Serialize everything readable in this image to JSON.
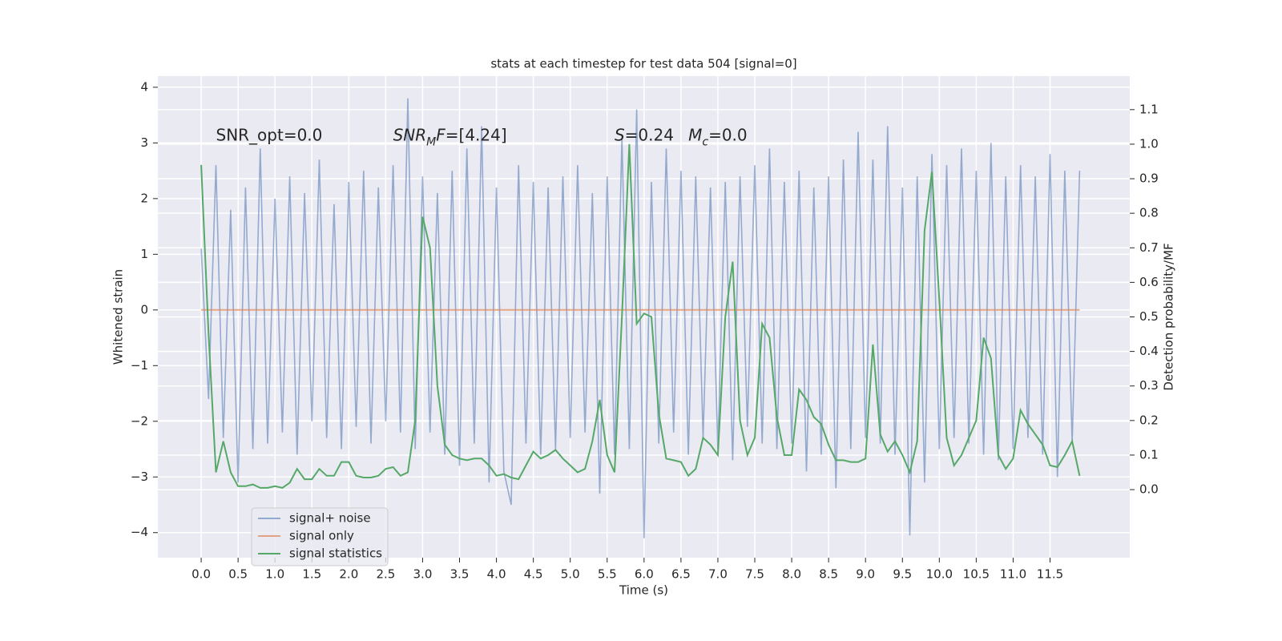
{
  "chart_data": {
    "type": "line",
    "title": "stats at each timestep for test data 504 [signal=0]",
    "xlabel": "Time (s)",
    "ylabel": "Whitened strain",
    "y2label": "Detection probability/MF",
    "annotations": [
      [
        {
          "t": "SNR_opt=0.0"
        }
      ],
      [
        {
          "t": "SNR",
          "italic": true
        },
        {
          "t": "M",
          "italic": true,
          "sub": true
        },
        {
          "t": "F",
          "italic": true
        },
        {
          "t": "=[4.24]"
        }
      ],
      [
        {
          "t": "S",
          "italic": true
        },
        {
          "t": "=0.24"
        }
      ],
      [
        {
          "t": "M",
          "italic": true
        },
        {
          "t": "c",
          "italic": true,
          "sub": true
        },
        {
          "t": "=0.0"
        }
      ]
    ],
    "x": [
      0.0,
      0.1,
      0.2,
      0.3,
      0.4,
      0.5,
      0.6,
      0.7,
      0.8,
      0.9,
      1.0,
      1.1,
      1.2,
      1.3,
      1.4,
      1.5,
      1.6,
      1.7,
      1.8,
      1.9,
      2.0,
      2.1,
      2.2,
      2.3,
      2.4,
      2.5,
      2.6,
      2.7,
      2.8,
      2.9,
      3.0,
      3.1,
      3.2,
      3.3,
      3.4,
      3.5,
      3.6,
      3.7,
      3.8,
      3.9,
      4.0,
      4.1,
      4.2,
      4.3,
      4.4,
      4.5,
      4.6,
      4.7,
      4.8,
      4.9,
      5.0,
      5.1,
      5.2,
      5.3,
      5.4,
      5.5,
      5.6,
      5.7,
      5.8,
      5.9,
      6.0,
      6.1,
      6.2,
      6.3,
      6.4,
      6.5,
      6.6,
      6.7,
      6.8,
      6.9,
      7.0,
      7.1,
      7.2,
      7.3,
      7.4,
      7.5,
      7.6,
      7.7,
      7.8,
      7.9,
      8.0,
      8.1,
      8.2,
      8.3,
      8.4,
      8.5,
      8.6,
      8.7,
      8.8,
      8.9,
      9.0,
      9.1,
      9.2,
      9.3,
      9.4,
      9.5,
      9.6,
      9.7,
      9.8,
      9.9,
      10.0,
      10.1,
      10.2,
      10.3,
      10.4,
      10.5,
      10.6,
      10.7,
      10.8,
      10.9,
      11.0,
      11.1,
      11.2,
      11.3,
      11.4,
      11.5,
      11.6,
      11.7,
      11.8,
      11.9
    ],
    "series": [
      {
        "name": "signal+ noise",
        "color": "#4c72b0",
        "values": [
          1.1,
          -1.6,
          2.6,
          -2.3,
          1.8,
          -3.1,
          2.2,
          -2.5,
          2.9,
          -2.4,
          2.0,
          -2.2,
          2.4,
          -2.6,
          2.1,
          -2.0,
          2.7,
          -2.3,
          1.9,
          -2.5,
          2.3,
          -2.1,
          2.5,
          -2.4,
          2.2,
          -2.0,
          2.6,
          -2.2,
          3.8,
          -2.5,
          2.4,
          -2.2,
          2.1,
          -2.6,
          2.5,
          -2.8,
          2.9,
          -2.4,
          3.3,
          -3.1,
          2.2,
          -2.9,
          -3.5,
          2.6,
          -2.4,
          2.3,
          -2.6,
          2.2,
          -2.5,
          2.4,
          -2.3,
          2.6,
          -2.2,
          2.1,
          -3.3,
          2.4,
          -2.6,
          3.1,
          -2.5,
          3.6,
          -4.1,
          2.3,
          -2.4,
          2.9,
          -2.2,
          2.5,
          -2.6,
          2.4,
          -2.3,
          2.2,
          -2.5,
          2.3,
          -2.7,
          2.4,
          -2.1,
          2.6,
          -2.4,
          2.9,
          -2.5,
          2.3,
          -2.4,
          2.5,
          -2.9,
          2.2,
          -2.6,
          2.4,
          -3.2,
          2.7,
          -2.5,
          3.2,
          -2.3,
          2.7,
          -2.4,
          3.3,
          -2.6,
          2.2,
          -4.05,
          2.4,
          -3.1,
          2.8,
          -2.5,
          2.6,
          -2.3,
          2.9,
          -2.4,
          2.5,
          -2.6,
          3.0,
          -2.7,
          2.4,
          -2.5,
          2.6,
          -2.3,
          2.4,
          -2.6,
          2.8,
          -3.0,
          2.5,
          -2.4,
          2.5
        ]
      },
      {
        "name": "signal only",
        "color": "#dd8452",
        "values": [
          0,
          0,
          0,
          0,
          0,
          0,
          0,
          0,
          0,
          0,
          0,
          0,
          0,
          0,
          0,
          0,
          0,
          0,
          0,
          0,
          0,
          0,
          0,
          0,
          0,
          0,
          0,
          0,
          0,
          0,
          0,
          0,
          0,
          0,
          0,
          0,
          0,
          0,
          0,
          0,
          0,
          0,
          0,
          0,
          0,
          0,
          0,
          0,
          0,
          0,
          0,
          0,
          0,
          0,
          0,
          0,
          0,
          0,
          0,
          0,
          0,
          0,
          0,
          0,
          0,
          0,
          0,
          0,
          0,
          0,
          0,
          0,
          0,
          0,
          0,
          0,
          0,
          0,
          0,
          0,
          0,
          0,
          0,
          0,
          0,
          0,
          0,
          0,
          0,
          0,
          0,
          0,
          0,
          0,
          0,
          0,
          0,
          0,
          0,
          0,
          0,
          0,
          0,
          0,
          0,
          0,
          0,
          0,
          0,
          0,
          0,
          0,
          0,
          0,
          0,
          0,
          0,
          0,
          0,
          0
        ]
      },
      {
        "name": "signal statistics",
        "color": "#55a868",
        "axis": "y2",
        "values": [
          0.94,
          0.45,
          0.05,
          0.14,
          0.05,
          0.01,
          0.01,
          0.015,
          0.005,
          0.005,
          0.01,
          0.005,
          0.02,
          0.06,
          0.03,
          0.03,
          0.06,
          0.04,
          0.04,
          0.08,
          0.08,
          0.04,
          0.035,
          0.035,
          0.04,
          0.06,
          0.065,
          0.04,
          0.05,
          0.2,
          0.79,
          0.7,
          0.3,
          0.13,
          0.1,
          0.09,
          0.085,
          0.09,
          0.09,
          0.07,
          0.04,
          0.045,
          0.035,
          0.03,
          0.07,
          0.11,
          0.09,
          0.1,
          0.115,
          0.09,
          0.07,
          0.05,
          0.06,
          0.14,
          0.26,
          0.1,
          0.05,
          0.5,
          1.0,
          0.48,
          0.51,
          0.5,
          0.22,
          0.09,
          0.085,
          0.08,
          0.04,
          0.06,
          0.15,
          0.13,
          0.1,
          0.5,
          0.66,
          0.2,
          0.1,
          0.15,
          0.48,
          0.44,
          0.21,
          0.1,
          0.1,
          0.29,
          0.26,
          0.21,
          0.19,
          0.13,
          0.085,
          0.085,
          0.08,
          0.08,
          0.09,
          0.42,
          0.16,
          0.11,
          0.14,
          0.1,
          0.05,
          0.14,
          0.75,
          0.92,
          0.55,
          0.15,
          0.07,
          0.1,
          0.15,
          0.2,
          0.44,
          0.38,
          0.1,
          0.06,
          0.09,
          0.23,
          0.19,
          0.16,
          0.13,
          0.07,
          0.065,
          0.1,
          0.14,
          0.04
        ]
      }
    ],
    "xlim": [
      -0.587,
      12.58
    ],
    "xticks": [
      {
        "value": 0,
        "label": "0.0"
      },
      {
        "value": 0.5,
        "label": "0.5"
      },
      {
        "value": 1,
        "label": "1.0"
      },
      {
        "value": 1.5,
        "label": "1.5"
      },
      {
        "value": 2,
        "label": "2.0"
      },
      {
        "value": 2.5,
        "label": "2.5"
      },
      {
        "value": 3,
        "label": "3.0"
      },
      {
        "value": 3.5,
        "label": "3.5"
      },
      {
        "value": 4,
        "label": "4.0"
      },
      {
        "value": 4.5,
        "label": "4.5"
      },
      {
        "value": 5,
        "label": "5.0"
      },
      {
        "value": 5.5,
        "label": "5.5"
      },
      {
        "value": 6,
        "label": "6.0"
      },
      {
        "value": 6.5,
        "label": "6.5"
      },
      {
        "value": 7,
        "label": "7.0"
      },
      {
        "value": 7.5,
        "label": "7.5"
      },
      {
        "value": 8,
        "label": "8.0"
      },
      {
        "value": 8.5,
        "label": "8.5"
      },
      {
        "value": 9,
        "label": "9.0"
      },
      {
        "value": 9.5,
        "label": "9.5"
      },
      {
        "value": 10,
        "label": "10.0"
      },
      {
        "value": 10.5,
        "label": "10.5"
      },
      {
        "value": 11,
        "label": "11.0"
      },
      {
        "value": 11.5,
        "label": "11.5"
      }
    ],
    "ylim": [
      -4.45,
      4.2
    ],
    "yticks": [
      {
        "value": -4,
        "label": "−4"
      },
      {
        "value": -3,
        "label": "−3"
      },
      {
        "value": -2,
        "label": "−2"
      },
      {
        "value": -1,
        "label": "−1"
      },
      0,
      1,
      2,
      3,
      4
    ],
    "y2lim": [
      -0.197,
      1.197
    ],
    "y2ticks": [
      {
        "value": 0,
        "label": "0.0"
      },
      {
        "value": 0.1,
        "label": "0.1"
      },
      {
        "value": 0.2,
        "label": "0.2"
      },
      {
        "value": 0.3,
        "label": "0.3"
      },
      {
        "value": 0.4,
        "label": "0.4"
      },
      {
        "value": 0.5,
        "label": "0.5"
      },
      {
        "value": 0.6,
        "label": "0.6"
      },
      {
        "value": 0.7,
        "label": "0.7"
      },
      {
        "value": 0.8,
        "label": "0.8"
      },
      {
        "value": 0.9,
        "label": "0.9"
      },
      {
        "value": 1.0,
        "label": "1.0"
      },
      {
        "value": 1.1,
        "label": "1.1"
      }
    ],
    "grid": true,
    "legend": "lower left"
  }
}
